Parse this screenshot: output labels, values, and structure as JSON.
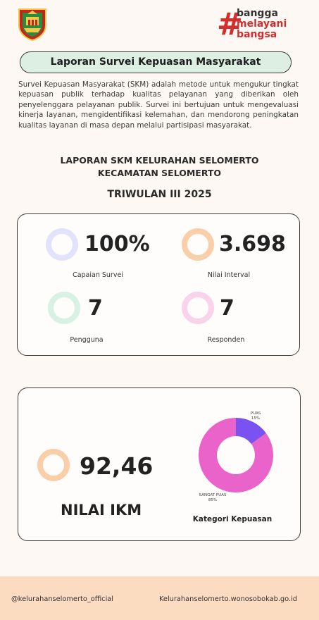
{
  "header": {
    "logo_icon": "regency-crest-icon",
    "brand": {
      "hash": "#",
      "line1": "bangga",
      "line2": "melayani",
      "line3": "bangsa"
    }
  },
  "title": "Laporan Survei Kepuasan Masyarakat",
  "description": "Survei Kepuasan Masyarakat (SKM) adalah metode untuk mengukur tingkat kepuasan publik terhadap kualitas pelayanan yang diberikan oleh penyelenggara pelayanan publik. Survei ini bertujuan untuk mengevaluasi kinerja layanan, mengidentifikasi kelemahan, dan mendorong peningkatan kualitas layanan di masa depan melalui partisipasi masyarakat.",
  "report": {
    "line1": "LAPORAN SKM KELURAHAN SELOMERTO",
    "line2": "KECAMATAN SELOMERTO",
    "period": "TRIWULAN III 2025"
  },
  "stats": [
    {
      "value": "100%",
      "label": "Capaian Survei",
      "color": "#e3e2fb"
    },
    {
      "value": "3.698",
      "label": "Nilai Interval",
      "color": "#f8cfa8"
    },
    {
      "value": "7",
      "label": "Pengguna",
      "color": "#d7f2e4"
    },
    {
      "value": "7",
      "label": "Responden",
      "color": "#f8d3ea"
    }
  ],
  "ikm": {
    "value": "92,46",
    "label": "NILAI IKM",
    "ring_color": "#f8cfa8"
  },
  "chart_data": {
    "type": "pie",
    "title": "Kategori Kepuasan",
    "slices": [
      {
        "label": "PUAS",
        "pct_label": "15%",
        "value": 15,
        "color": "#7a52f0"
      },
      {
        "label": "SANGAT PUAS",
        "pct_label": "85%",
        "value": 85,
        "color": "#ea63cb"
      }
    ]
  },
  "footer": {
    "instagram": "@kelurahanselomerto_official",
    "website": "Kelurahanselomerto.wonosobokab.go.id"
  }
}
